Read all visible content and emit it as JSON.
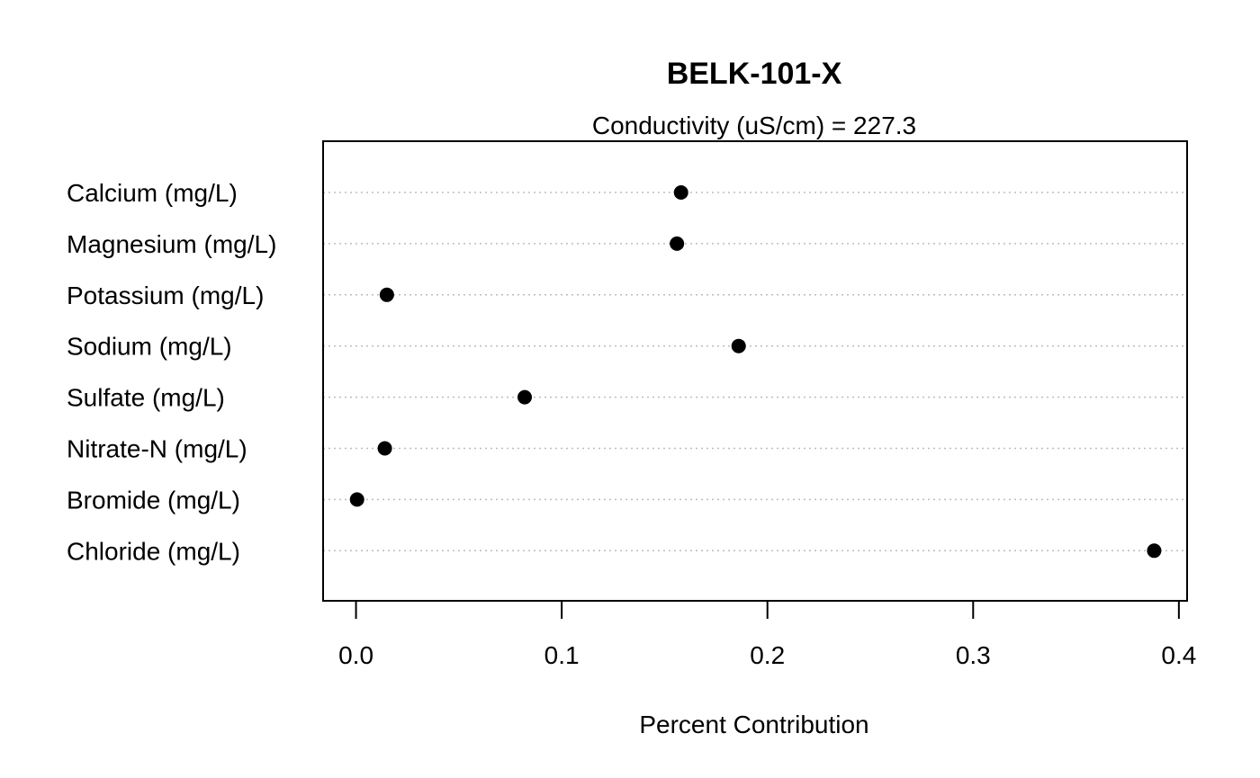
{
  "chart_data": {
    "type": "scatter",
    "title": "BELK-101-X",
    "subtitle": "Conductivity (uS/cm) = 227.3",
    "xlabel": "Percent Contribution",
    "ylabel": "",
    "xlim": [
      -0.016,
      0.404
    ],
    "x_ticks": [
      0.0,
      0.1,
      0.2,
      0.3,
      0.4
    ],
    "x_tick_labels": [
      "0.0",
      "0.1",
      "0.2",
      "0.3",
      "0.4"
    ],
    "grid": false,
    "categories": [
      "Calcium (mg/L)",
      "Magnesium (mg/L)",
      "Potassium (mg/L)",
      "Sodium (mg/L)",
      "Sulfate (mg/L)",
      "Nitrate-N (mg/L)",
      "Bromide (mg/L)",
      "Chloride (mg/L)"
    ],
    "values": [
      0.158,
      0.156,
      0.015,
      0.186,
      0.082,
      0.014,
      0.0005,
      0.388
    ]
  }
}
